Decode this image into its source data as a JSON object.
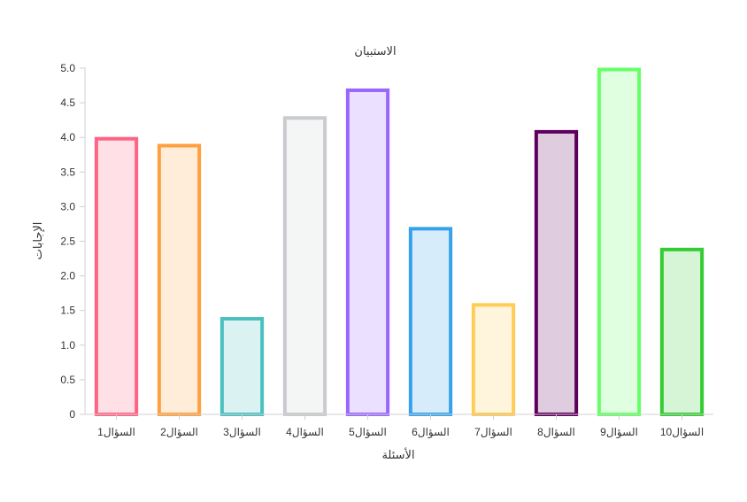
{
  "chart_data": {
    "type": "bar",
    "title": "الاستبيان",
    "xlabel": "الأسئلة",
    "ylabel": "الإجابات",
    "categories": [
      "السؤال1",
      "السؤال2",
      "السؤال3",
      "السؤال4",
      "السؤال5",
      "السؤال6",
      "السؤال7",
      "السؤال8",
      "السؤال9",
      "السؤال10"
    ],
    "values": [
      4.0,
      3.9,
      1.4,
      4.3,
      4.7,
      2.7,
      1.6,
      4.1,
      5.0,
      2.4
    ],
    "ylim": [
      0,
      5
    ],
    "yticks": [
      "0",
      "0.5",
      "1.0",
      "1.5",
      "2.0",
      "2.5",
      "3.0",
      "3.5",
      "4.0",
      "4.5",
      "5.0"
    ],
    "grid": false,
    "legend": "none",
    "colors": [
      {
        "border": "#ff6384",
        "fill": "#ffe0e6"
      },
      {
        "border": "#ff9f40",
        "fill": "#ffecd9"
      },
      {
        "border": "#4bc0c0",
        "fill": "#dbf2f2"
      },
      {
        "border": "#c9cbcf",
        "fill": "#f4f5f5"
      },
      {
        "border": "#9966ff",
        "fill": "#ebe0ff"
      },
      {
        "border": "#36a2eb",
        "fill": "#d7ecfb"
      },
      {
        "border": "#ffcd56",
        "fill": "#fff5dd"
      },
      {
        "border": "#5c005c",
        "fill": "#dfccdf"
      },
      {
        "border": "#66ff66",
        "fill": "#e0ffe0"
      },
      {
        "border": "#33cc33",
        "fill": "#d6f5d6"
      }
    ]
  }
}
